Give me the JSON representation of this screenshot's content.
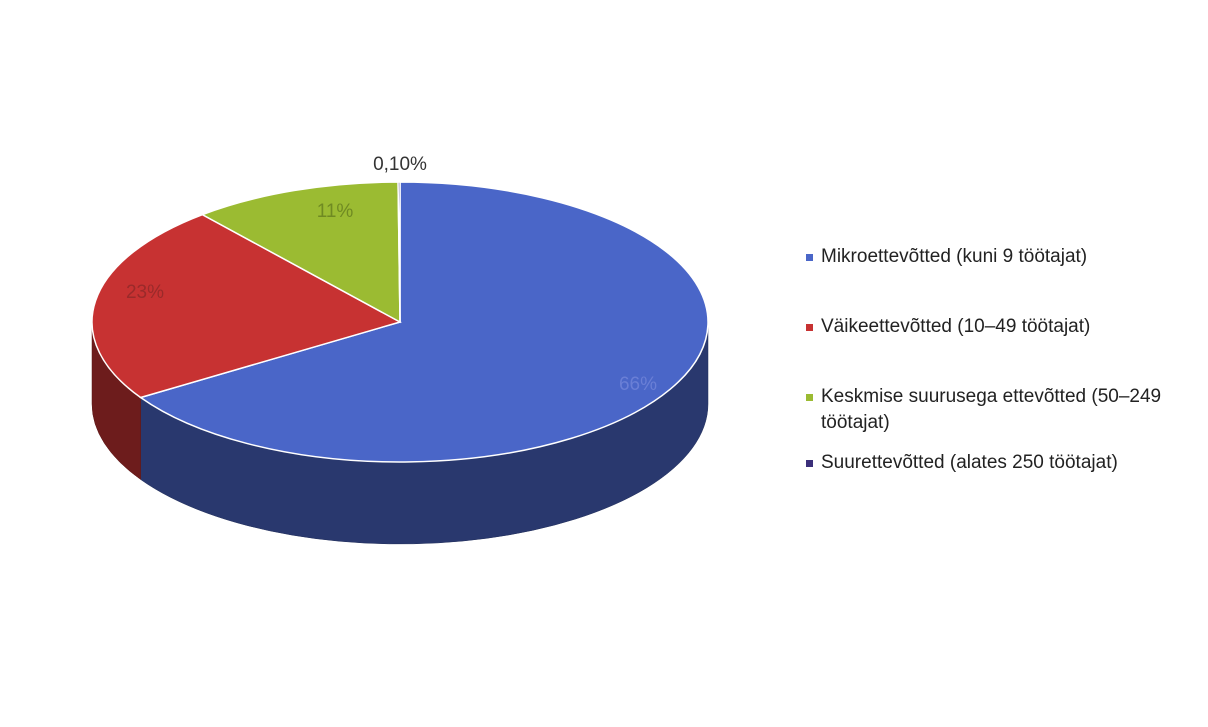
{
  "chart_data": {
    "type": "pie",
    "style": "3d",
    "slices": [
      {
        "name": "Mikroettevõtted (kuni 9 töötajat)",
        "value": 66,
        "label": "66%",
        "color": "#4a66c8"
      },
      {
        "name": "Väikeettevõtted (10–49 töötajat)",
        "value": 23,
        "label": "23%",
        "color": "#c73232"
      },
      {
        "name": "Keskmise suurusega ettevõtted (50–249 töötajat)",
        "value": 11,
        "label": "11%",
        "color": "#9bbb32"
      },
      {
        "name": "Suurettevõtted (alates 250 töötajat)",
        "value": 0.1,
        "label": "0,10%",
        "color": "#3b2f7a"
      }
    ],
    "legend_position": "right"
  }
}
